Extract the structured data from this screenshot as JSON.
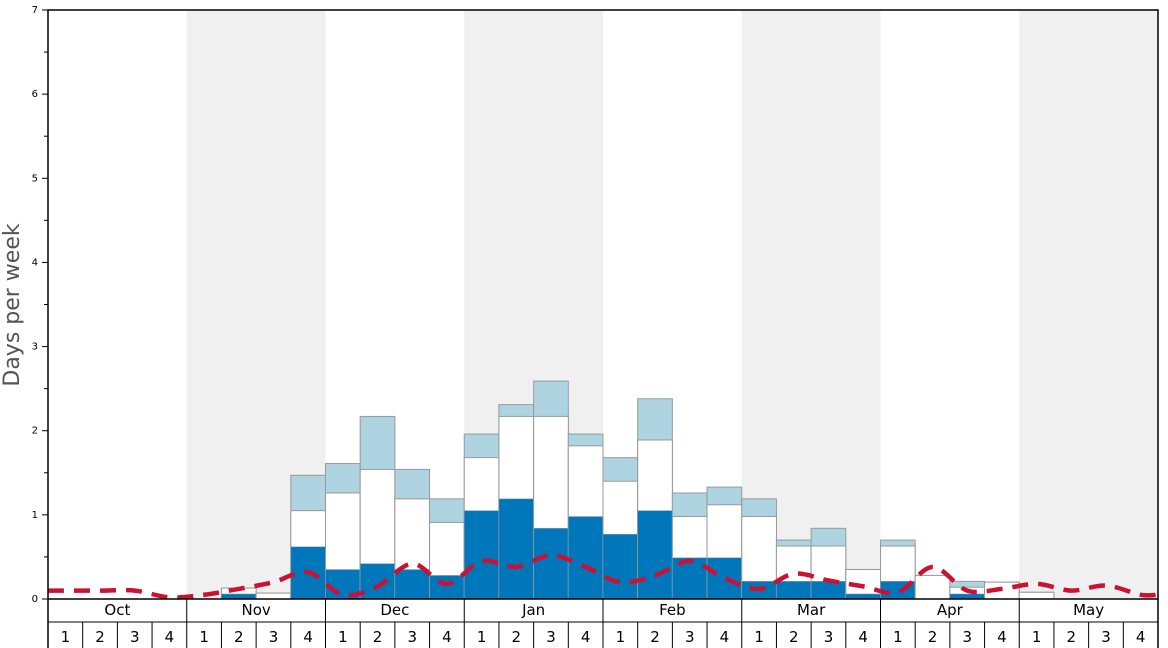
{
  "chart_data": {
    "type": "bar",
    "ylabel": "Days per week",
    "ylim": [
      0,
      7
    ],
    "yticks": [
      "0",
      "1",
      "2",
      "3",
      "4",
      "5",
      "6",
      "7"
    ],
    "months": [
      "Oct",
      "Nov",
      "Dec",
      "Jan",
      "Feb",
      "Mar",
      "Apr",
      "May"
    ],
    "weeks": [
      "1",
      "2",
      "3",
      "4"
    ],
    "shaded_months": [
      "Nov",
      "Jan",
      "Mar",
      "May"
    ],
    "colors": {
      "dark": "#0077bb",
      "middle": "#ffffff",
      "light": "#add4e0",
      "dashed_line": "#cc1133",
      "shade": "#f0f0f0",
      "bar_edge": "#999999"
    },
    "series": [
      {
        "values": [
          0,
          0,
          0,
          0,
          0,
          0.06,
          0,
          0.62,
          0.35,
          0.42,
          0.35,
          0.28,
          1.05,
          1.19,
          0.84,
          0.98,
          0.77,
          1.05,
          0.49,
          0.49,
          0.21,
          0.21,
          0.21,
          0.06,
          0.21,
          0,
          0.06,
          0,
          0,
          0,
          0,
          0
        ]
      },
      {
        "values": [
          0,
          0,
          0,
          0,
          0,
          0.13,
          0.07,
          1.05,
          1.26,
          1.54,
          1.19,
          0.91,
          1.68,
          2.17,
          2.17,
          1.82,
          1.4,
          1.89,
          0.98,
          1.12,
          0.98,
          0.63,
          0.63,
          0.35,
          0.63,
          0.28,
          0.14,
          0.2,
          0.08,
          0,
          0,
          0
        ]
      },
      {
        "values": [
          0,
          0,
          0,
          0,
          0,
          0.13,
          0.07,
          1.47,
          1.61,
          2.17,
          1.54,
          1.19,
          1.96,
          2.31,
          2.59,
          1.96,
          1.68,
          2.38,
          1.26,
          1.33,
          1.19,
          0.7,
          0.84,
          0.35,
          0.7,
          0.28,
          0.21,
          0.2,
          0.08,
          0,
          0,
          0
        ]
      },
      {
        "values": [
          0.1,
          0.1,
          0.1,
          0.02,
          0.05,
          0.12,
          0.2,
          0.32,
          0.05,
          0.15,
          0.42,
          0.18,
          0.45,
          0.38,
          0.52,
          0.38,
          0.2,
          0.28,
          0.45,
          0.25,
          0.12,
          0.3,
          0.22,
          0.15,
          0.08,
          0.38,
          0.1,
          0.12,
          0.18,
          0.1,
          0.16,
          0.05
        ]
      }
    ]
  }
}
